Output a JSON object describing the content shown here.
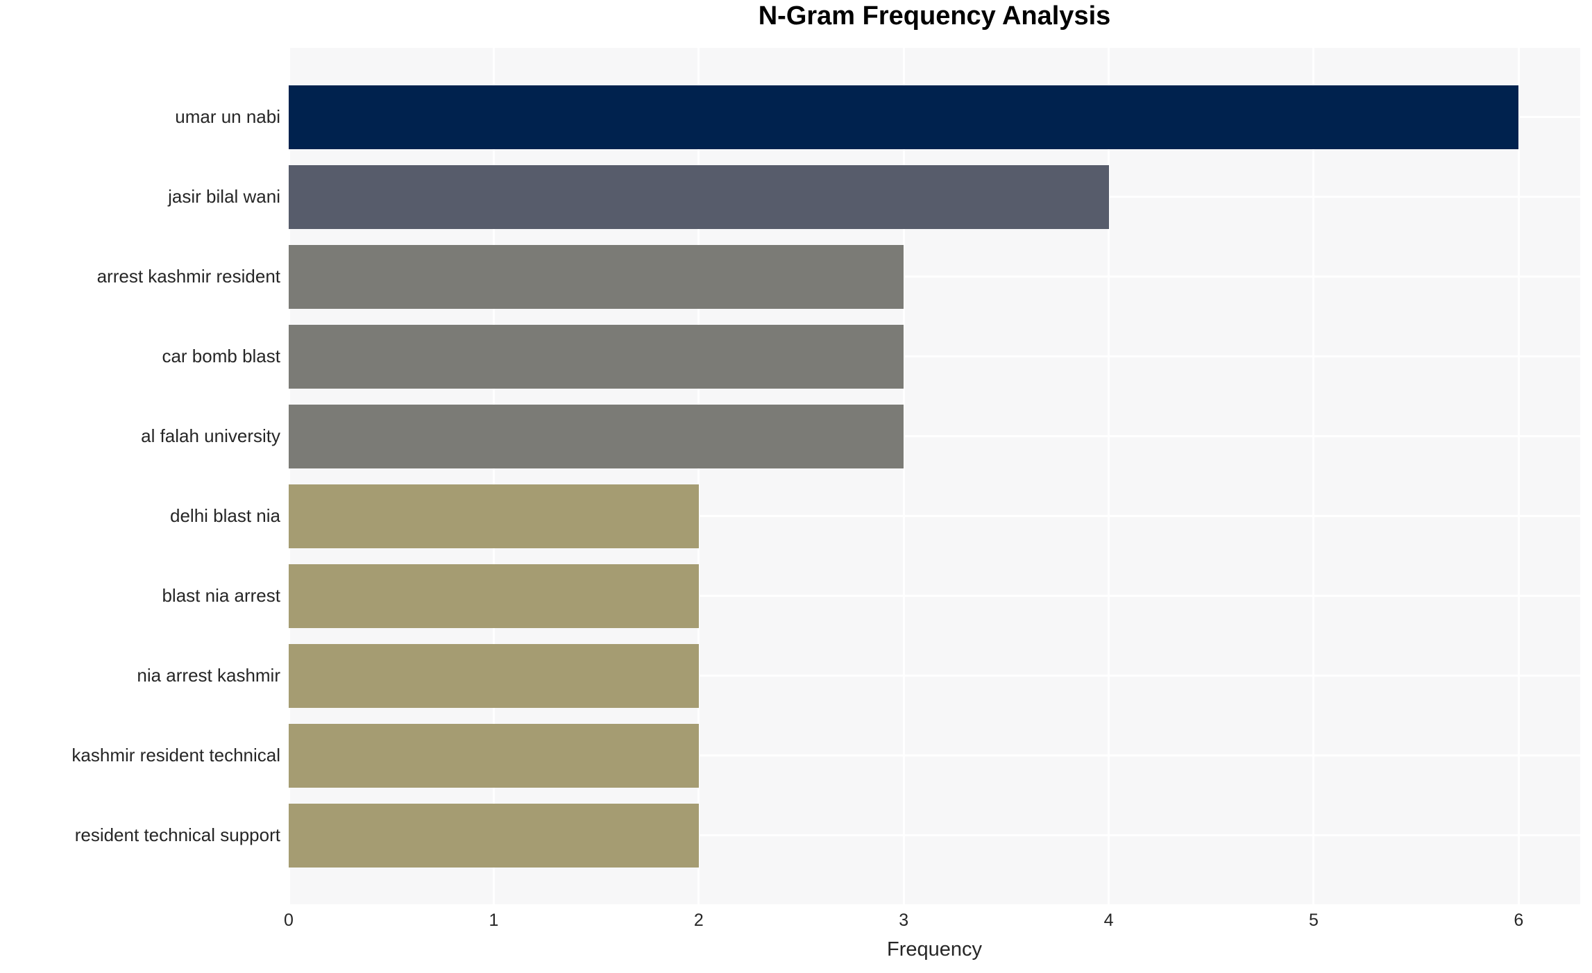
{
  "chart_data": {
    "type": "bar",
    "orientation": "horizontal",
    "title": "N-Gram Frequency Analysis",
    "xlabel": "Frequency",
    "ylabel": "",
    "categories": [
      "umar un nabi",
      "jasir bilal wani",
      "arrest kashmir resident",
      "car bomb blast",
      "al falah university",
      "delhi blast nia",
      "blast nia arrest",
      "nia arrest kashmir",
      "kashmir resident technical",
      "resident technical support"
    ],
    "values": [
      6,
      4,
      3,
      3,
      3,
      2,
      2,
      2,
      2,
      2
    ],
    "bar_colors": [
      "#00224e",
      "#575c6b",
      "#7b7b76",
      "#7b7b76",
      "#7b7b76",
      "#a59c72",
      "#a59c72",
      "#a59c72",
      "#a59c72",
      "#a59c72"
    ],
    "x_ticks": [
      0,
      1,
      2,
      3,
      4,
      5,
      6
    ],
    "xlim": [
      0,
      6.3
    ],
    "grid": true,
    "legend": false,
    "style": {
      "plot_bg": "#f7f7f8",
      "grid_color": "#ffffff",
      "tick_text_color": "#262626",
      "title_color": "#000000"
    }
  }
}
